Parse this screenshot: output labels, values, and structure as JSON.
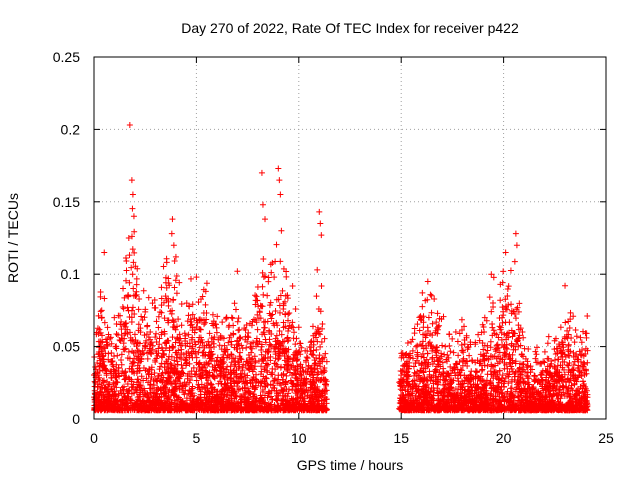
{
  "chart_data": {
    "type": "scatter",
    "title": "Day 270 of 2022, Rate Of TEC Index for receiver p422",
    "xlabel": "GPS time / hours",
    "ylabel": "ROTI / TECUs",
    "xlim": [
      0,
      25
    ],
    "ylim": [
      0,
      0.25
    ],
    "xticks": [
      0,
      5,
      10,
      15,
      20,
      25
    ],
    "xtick_labels": [
      "0",
      "5",
      "10",
      "15",
      "20",
      "25"
    ],
    "yticks": [
      0,
      0.05,
      0.1,
      0.15,
      0.2,
      0.25
    ],
    "ytick_labels": [
      "0",
      "0.05",
      "0.1",
      "0.15",
      "0.2",
      "0.25"
    ],
    "grid": true,
    "marker": "+",
    "series": [
      {
        "name": "ROTI",
        "color": "#ff0000",
        "segments": [
          [
            0,
            11.4
          ],
          [
            14.9,
            24.1
          ]
        ],
        "outliers": [
          {
            "x": 1.75,
            "y": 0.203
          },
          {
            "x": 1.85,
            "y": 0.165
          },
          {
            "x": 1.9,
            "y": 0.155
          },
          {
            "x": 1.95,
            "y": 0.14
          },
          {
            "x": 1.7,
            "y": 0.125
          },
          {
            "x": 0.5,
            "y": 0.115
          },
          {
            "x": 3.8,
            "y": 0.128
          },
          {
            "x": 3.9,
            "y": 0.12
          },
          {
            "x": 4.0,
            "y": 0.112
          },
          {
            "x": 8.2,
            "y": 0.17
          },
          {
            "x": 8.25,
            "y": 0.148
          },
          {
            "x": 8.35,
            "y": 0.138
          },
          {
            "x": 9.0,
            "y": 0.173
          },
          {
            "x": 9.05,
            "y": 0.165
          },
          {
            "x": 9.1,
            "y": 0.155
          },
          {
            "x": 9.15,
            "y": 0.13
          },
          {
            "x": 11.0,
            "y": 0.143
          },
          {
            "x": 11.05,
            "y": 0.135
          },
          {
            "x": 11.1,
            "y": 0.127
          },
          {
            "x": 10.9,
            "y": 0.103
          },
          {
            "x": 20.6,
            "y": 0.128
          },
          {
            "x": 20.65,
            "y": 0.12
          },
          {
            "x": 20.1,
            "y": 0.115
          },
          {
            "x": 19.4,
            "y": 0.1
          },
          {
            "x": 23.0,
            "y": 0.092
          },
          {
            "x": 16.3,
            "y": 0.095
          },
          {
            "x": 5.0,
            "y": 0.098
          },
          {
            "x": 7.0,
            "y": 0.102
          }
        ]
      }
    ]
  }
}
